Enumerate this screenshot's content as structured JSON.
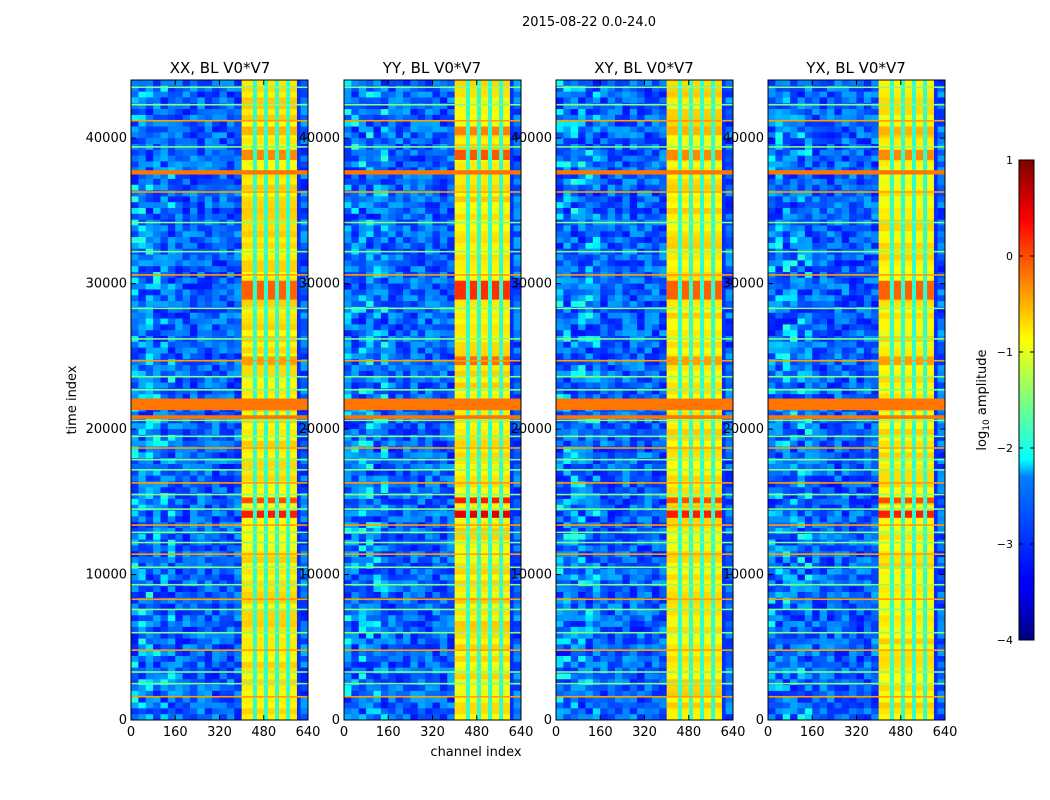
{
  "chart_data": {
    "type": "heatmap",
    "suptitle": "2015-08-22 0.0-24.0",
    "xlabel": "channel index",
    "ylabel": "time index",
    "xlim": [
      0,
      640
    ],
    "ylim": [
      0,
      44000
    ],
    "xticks": [
      0,
      160,
      320,
      480,
      640
    ],
    "yticks": [
      0,
      10000,
      20000,
      30000,
      40000
    ],
    "xtick_labels": [
      "0",
      "160",
      "320",
      "480",
      "640"
    ],
    "ytick_labels": [
      "0",
      "10000",
      "20000",
      "30000",
      "40000"
    ],
    "panels": [
      {
        "title": "XX, BL V0*V7"
      },
      {
        "title": "YY, BL V0*V7"
      },
      {
        "title": "XY, BL V0*V7"
      },
      {
        "title": "YX, BL V0*V7"
      }
    ],
    "band_channels": [
      400,
      600
    ],
    "band_gaps": [
      448,
      488,
      528,
      568
    ],
    "flagged_rows": [
      1600,
      2500,
      3300,
      4800,
      6000,
      7600,
      8300,
      9300,
      10500,
      11400,
      12200,
      12900,
      13400,
      14500,
      15500,
      16300,
      17200,
      17900,
      18700,
      19500,
      20600,
      21500,
      22700,
      23600,
      24700,
      26200,
      28300,
      30600,
      32200,
      34200,
      36300,
      37700,
      39400,
      41200,
      42300,
      43500
    ],
    "hot_rows": [
      {
        "from": 13900,
        "to": 14400,
        "level": 0.85
      },
      {
        "from": 14900,
        "to": 15300,
        "level": 0.8
      },
      {
        "from": 24400,
        "to": 25000,
        "level": 0.72
      },
      {
        "from": 28900,
        "to": 30200,
        "level": 0.78
      },
      {
        "from": 38500,
        "to": 39200,
        "level": 0.74
      },
      {
        "from": 40200,
        "to": 40800,
        "level": 0.7
      }
    ],
    "thick_flag_rows": [
      {
        "from": 21300,
        "to": 22100
      },
      {
        "from": 37500,
        "to": 37800
      },
      {
        "from": 20700,
        "to": 20950
      }
    ],
    "colorbar": {
      "label": "log",
      "label_sub": "10",
      "label_rest": " amplitude",
      "range": [
        -4,
        1
      ],
      "ticks": [
        1,
        0,
        -1,
        -2,
        -3,
        -4
      ],
      "tick_labels": [
        "1",
        "0",
        "−1",
        "−2",
        "−3",
        "−4"
      ],
      "colormap": "jet"
    }
  }
}
